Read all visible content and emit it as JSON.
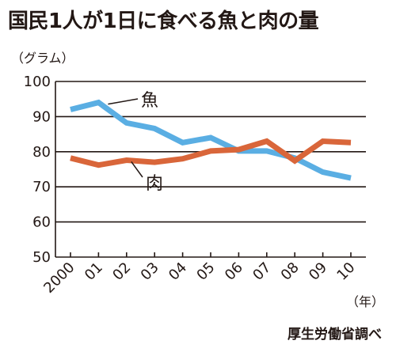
{
  "title": "国民1人が1日に食べる魚と肉の量",
  "unit_label": "（グラム）",
  "x_unit_label": "（年）",
  "source": "厚生労働省調べ",
  "colors": {
    "fish": "#5aaee3",
    "meat": "#d9663a",
    "axis": "#231815"
  },
  "chart_data": {
    "type": "line",
    "title": "国民1人が1日に食べる魚と肉の量",
    "ylabel": "（グラム）",
    "xlabel": "（年）",
    "categories": [
      "2000",
      "01",
      "02",
      "03",
      "04",
      "05",
      "06",
      "07",
      "08",
      "09",
      "10"
    ],
    "ylim": [
      50,
      100
    ],
    "yticks": [
      "50",
      "60",
      "70",
      "80",
      "90",
      "100"
    ],
    "grid": true,
    "series": [
      {
        "name": "魚",
        "values": [
          92.0,
          94.0,
          88.2,
          86.6,
          82.6,
          84.0,
          80.2,
          80.2,
          78.2,
          74.2,
          72.5
        ]
      },
      {
        "name": "肉",
        "values": [
          78.2,
          76.2,
          77.6,
          77.0,
          78.0,
          80.2,
          80.6,
          83.0,
          77.4,
          83.0,
          82.6
        ]
      }
    ]
  }
}
